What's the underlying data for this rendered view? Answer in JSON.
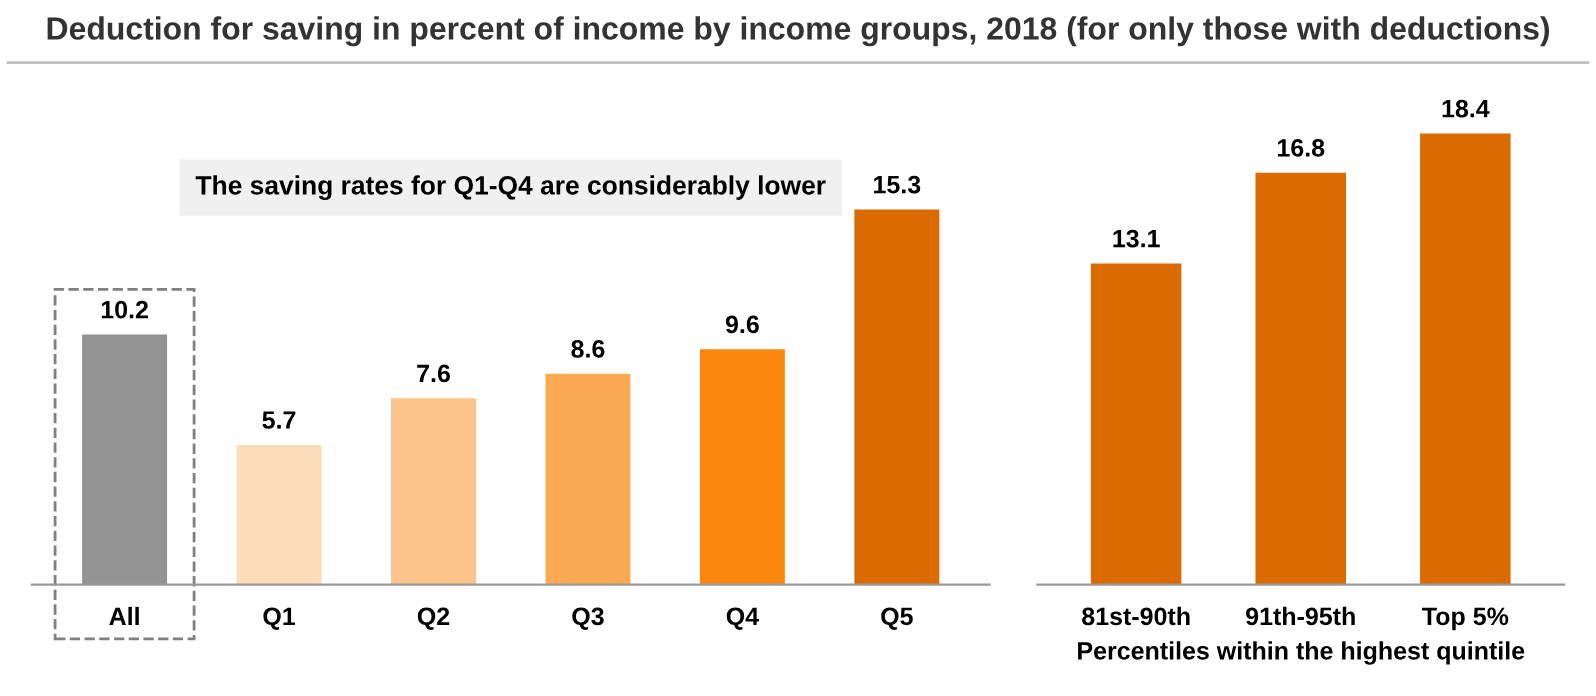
{
  "chart_data": [
    {
      "type": "bar",
      "title": "Deduction for saving in percent of income by income groups, 2018 (for only those with deductions)",
      "categories": [
        "All",
        "Q1",
        "Q2",
        "Q3",
        "Q4",
        "Q5"
      ],
      "values": [
        10.2,
        5.7,
        7.6,
        8.6,
        9.6,
        15.3
      ],
      "colors": [
        "#939393",
        "#fddcbc",
        "#fdc48c",
        "#fdaa55",
        "#fd870e",
        "#d96b00"
      ],
      "data_labels": true,
      "tick_labels": "x",
      "grid": false,
      "legend": false,
      "annotations": [
        "The saving rates for Q1-Q4 are considerably lower"
      ]
    },
    {
      "type": "bar",
      "xlabel": "Percentiles within the highest quintile",
      "categories": [
        "81st-90th",
        "91th-95th",
        "Top 5%"
      ],
      "values": [
        13.1,
        16.8,
        18.4
      ],
      "colors": [
        "#d96b00",
        "#d96b00",
        "#d96b00"
      ],
      "data_labels": true,
      "tick_labels": "x",
      "grid": false,
      "legend": false
    }
  ]
}
